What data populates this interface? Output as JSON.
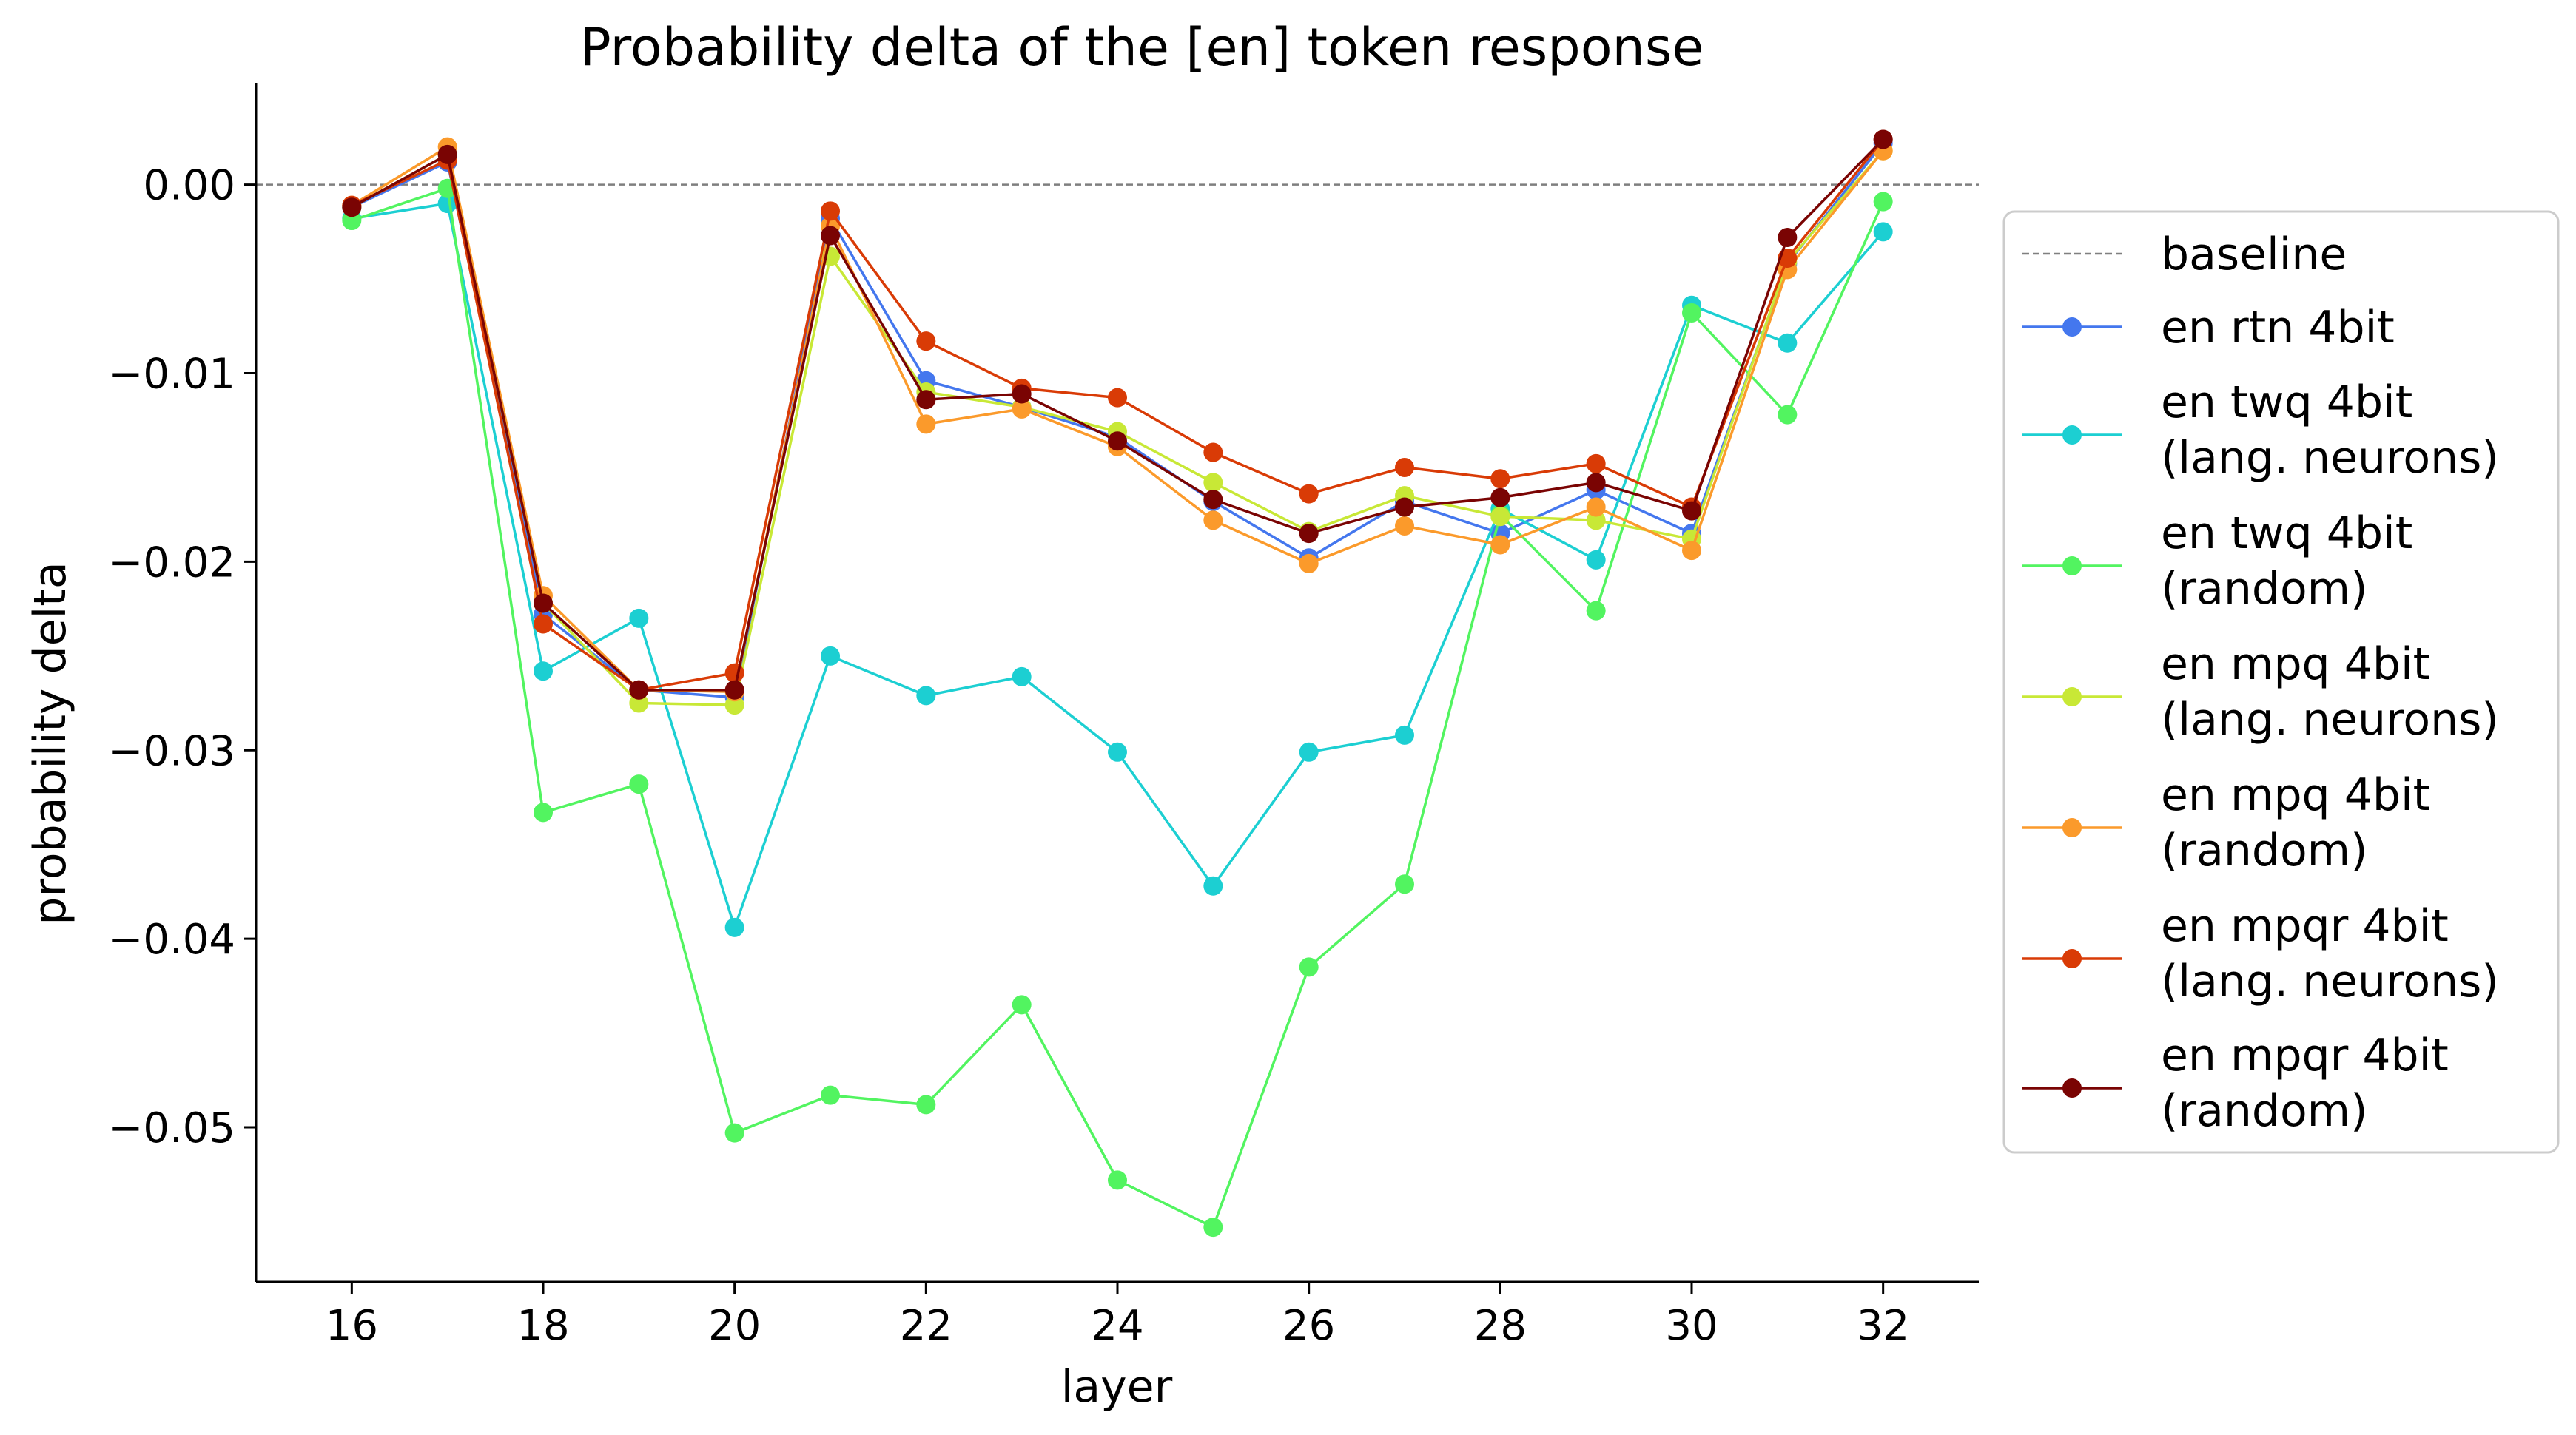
{
  "chart_data": {
    "type": "line",
    "title": "Probability delta of the [en] token response",
    "xlabel": "layer",
    "ylabel": "probability delta",
    "xlim": [
      15,
      33
    ],
    "ylim": [
      -0.0582,
      0.0054
    ],
    "xticks": [
      16,
      18,
      20,
      22,
      24,
      26,
      28,
      30,
      32
    ],
    "xtick_labels": [
      "16",
      "18",
      "20",
      "22",
      "24",
      "26",
      "28",
      "30",
      "32"
    ],
    "yticks": [
      0.0,
      -0.01,
      -0.02,
      -0.03,
      -0.04,
      -0.05
    ],
    "ytick_labels": [
      "0.00",
      "−0.01",
      "−0.02",
      "−0.03",
      "−0.04",
      "−0.05"
    ],
    "baseline": {
      "name": "baseline",
      "value": 0.0,
      "color": "#7f7f7f"
    },
    "legend_position": "right",
    "grid": false,
    "x": [
      16,
      17,
      18,
      19,
      20,
      21,
      22,
      23,
      24,
      25,
      26,
      27,
      28,
      29,
      30,
      31,
      32
    ],
    "series": [
      {
        "name": "en rtn 4bit",
        "legend_lines": [
          "en rtn 4bit"
        ],
        "color": "#4477ee",
        "values": [
          -0.0012,
          0.0012,
          -0.0228,
          -0.0268,
          -0.0272,
          -0.0018,
          -0.0104,
          -0.0118,
          -0.0134,
          -0.0168,
          -0.0198,
          -0.0168,
          -0.0185,
          -0.0162,
          -0.0185,
          -0.0042,
          0.0022
        ]
      },
      {
        "name": "en twq 4bit (lang. neurons)",
        "legend_lines": [
          "en twq 4bit",
          "(lang. neurons)"
        ],
        "color": "#1ccfd2",
        "values": [
          -0.0018,
          -0.001,
          -0.0258,
          -0.023,
          -0.0394,
          -0.025,
          -0.0271,
          -0.0261,
          -0.0301,
          -0.0372,
          -0.0301,
          -0.0292,
          -0.0172,
          -0.0199,
          -0.0064,
          -0.0084,
          -0.0025
        ]
      },
      {
        "name": "en twq 4bit (random)",
        "legend_lines": [
          "en twq 4bit",
          "(random)"
        ],
        "color": "#52f460",
        "values": [
          -0.0019,
          -0.0002,
          -0.0333,
          -0.0318,
          -0.0503,
          -0.0483,
          -0.0488,
          -0.0435,
          -0.0528,
          -0.0553,
          -0.0415,
          -0.0371,
          -0.0175,
          -0.0226,
          -0.0068,
          -0.0122,
          -0.0009
        ]
      },
      {
        "name": "en mpq 4bit (lang. neurons)",
        "legend_lines": [
          "en mpq 4bit",
          "(lang. neurons)"
        ],
        "color": "#c8e836",
        "values": [
          -0.0012,
          0.0016,
          -0.0222,
          -0.0275,
          -0.0276,
          -0.0038,
          -0.011,
          -0.0118,
          -0.0131,
          -0.0158,
          -0.0184,
          -0.0165,
          -0.0176,
          -0.0178,
          -0.0188,
          -0.0041,
          0.0018
        ]
      },
      {
        "name": "en mpq 4bit (random)",
        "legend_lines": [
          "en mpq 4bit",
          "(random)"
        ],
        "color": "#fb9a2b",
        "values": [
          -0.0011,
          0.002,
          -0.0218,
          -0.0268,
          -0.0269,
          -0.0022,
          -0.0127,
          -0.0119,
          -0.0139,
          -0.0178,
          -0.0201,
          -0.0181,
          -0.0191,
          -0.0171,
          -0.0194,
          -0.0045,
          0.0018
        ]
      },
      {
        "name": "en mpqr 4bit (lang. neurons)",
        "legend_lines": [
          "en mpqr 4bit",
          "(lang. neurons)"
        ],
        "color": "#d93b06",
        "values": [
          -0.0011,
          0.0013,
          -0.0233,
          -0.0268,
          -0.0259,
          -0.0014,
          -0.0083,
          -0.0108,
          -0.0113,
          -0.0142,
          -0.0164,
          -0.015,
          -0.0156,
          -0.0148,
          -0.0171,
          -0.0039,
          0.0024
        ]
      },
      {
        "name": "en mpqr 4bit (random)",
        "legend_lines": [
          "en mpqr 4bit",
          "(random)"
        ],
        "color": "#7a0403",
        "values": [
          -0.0012,
          0.0016,
          -0.0222,
          -0.0268,
          -0.0268,
          -0.0027,
          -0.0114,
          -0.0111,
          -0.0136,
          -0.0167,
          -0.0185,
          -0.0171,
          -0.0166,
          -0.0158,
          -0.0173,
          -0.0028,
          0.0024
        ]
      }
    ]
  }
}
